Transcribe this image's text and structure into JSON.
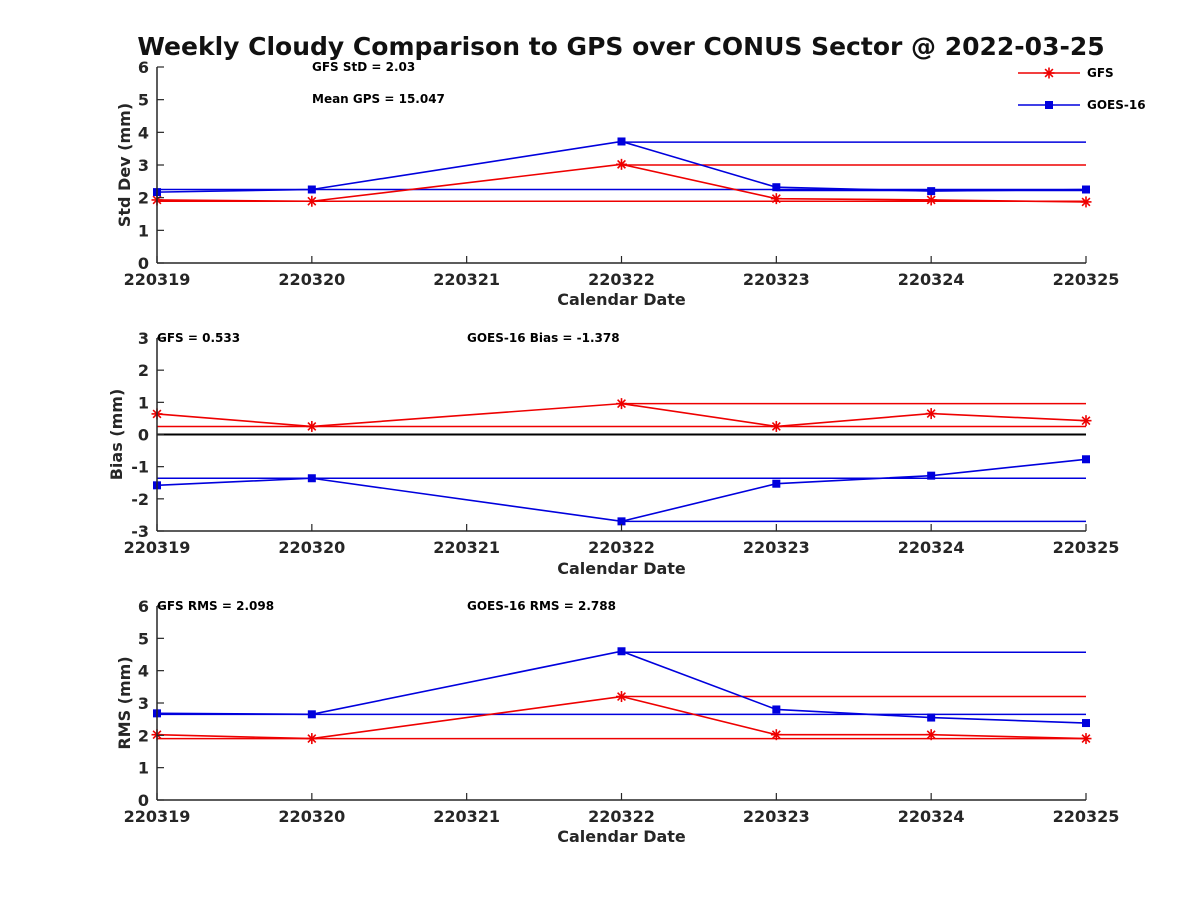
{
  "title": "Weekly Cloudy Comparison to GPS over CONUS Sector @ 2022-03-25",
  "legend": {
    "placement": "top-right",
    "entries": [
      {
        "label": "GFS",
        "color": "#ee0000",
        "marker": "asterisk"
      },
      {
        "label": "GOES-16",
        "color": "#0000dd",
        "marker": "square"
      }
    ]
  },
  "chart_data": [
    {
      "type": "line",
      "xlabel": "Calendar Date",
      "ylabel": "Std Dev (mm)",
      "ylim": [
        0,
        6
      ],
      "yticks": [
        "0",
        "1",
        "2",
        "3",
        "4",
        "5",
        "6"
      ],
      "categories": [
        "220319",
        "220320",
        "220321",
        "220322",
        "220323",
        "220324",
        "220325"
      ],
      "annotations": [
        "GFS StD = 2.03",
        "Mean GPS = 15.047"
      ],
      "series": [
        {
          "name": "GFS",
          "color": "#ee0000",
          "marker": "asterisk",
          "x": [
            0,
            1,
            3,
            4,
            5,
            6
          ],
          "values": [
            1.93,
            1.89,
            3.02,
            1.97,
            1.93,
            1.87
          ]
        },
        {
          "name": "GOES-16",
          "color": "#0000dd",
          "marker": "square",
          "x": [
            0,
            1,
            3,
            4,
            5,
            6
          ],
          "values": [
            2.17,
            2.25,
            3.72,
            2.32,
            2.2,
            2.25
          ]
        }
      ],
      "reference_lines": [
        {
          "series": "GFS",
          "from": 0,
          "to": 6,
          "value": 1.89
        },
        {
          "series": "GFS",
          "from": 3,
          "to": 6,
          "value": 3.0
        },
        {
          "series": "GOES-16",
          "from": 0,
          "to": 6,
          "value": 2.25
        },
        {
          "series": "GOES-16",
          "from": 3,
          "to": 6,
          "value": 3.7
        },
        {
          "series": "GOES-16",
          "from": 4,
          "to": 6,
          "value": 2.22
        }
      ]
    },
    {
      "type": "line",
      "xlabel": "Calendar Date",
      "ylabel": "Bias (mm)",
      "ylim": [
        -3,
        3
      ],
      "yticks": [
        "-3",
        "-2",
        "-1",
        "0",
        "1",
        "2",
        "3"
      ],
      "categories": [
        "220319",
        "220320",
        "220321",
        "220322",
        "220323",
        "220324",
        "220325"
      ],
      "annotations": [
        "GFS = 0.533",
        "GOES-16 Bias  = -1.378"
      ],
      "series": [
        {
          "name": "GFS",
          "color": "#ee0000",
          "marker": "asterisk",
          "x": [
            0,
            1,
            3,
            4,
            5,
            6
          ],
          "values": [
            0.64,
            0.25,
            0.96,
            0.25,
            0.65,
            0.43
          ]
        },
        {
          "name": "GOES-16",
          "color": "#0000dd",
          "marker": "square",
          "x": [
            0,
            1,
            3,
            4,
            5,
            6
          ],
          "values": [
            -1.58,
            -1.36,
            -2.7,
            -1.53,
            -1.28,
            -0.77
          ]
        }
      ],
      "reference_lines": [
        {
          "series": "zero",
          "from": 0,
          "to": 6,
          "value": 0,
          "color": "#000000"
        },
        {
          "series": "GFS",
          "from": 0,
          "to": 6,
          "value": 0.25
        },
        {
          "series": "GFS",
          "from": 3,
          "to": 6,
          "value": 0.96
        },
        {
          "series": "GOES-16",
          "from": 0,
          "to": 6,
          "value": -1.36
        },
        {
          "series": "GOES-16",
          "from": 3,
          "to": 6,
          "value": -2.7
        }
      ]
    },
    {
      "type": "line",
      "xlabel": "Calendar Date",
      "ylabel": "RMS (mm)",
      "ylim": [
        0,
        6
      ],
      "yticks": [
        "0",
        "1",
        "2",
        "3",
        "4",
        "5",
        "6"
      ],
      "categories": [
        "220319",
        "220320",
        "220321",
        "220322",
        "220323",
        "220324",
        "220325"
      ],
      "annotations": [
        "GFS RMS = 2.098",
        "GOES-16 RMS = 2.788"
      ],
      "series": [
        {
          "name": "GFS",
          "color": "#ee0000",
          "marker": "asterisk",
          "x": [
            0,
            1,
            3,
            4,
            5,
            6
          ],
          "values": [
            2.02,
            1.9,
            3.2,
            2.02,
            2.02,
            1.9
          ]
        },
        {
          "name": "GOES-16",
          "color": "#0000dd",
          "marker": "square",
          "x": [
            0,
            1,
            3,
            4,
            5,
            6
          ],
          "values": [
            2.68,
            2.65,
            4.6,
            2.8,
            2.55,
            2.38
          ]
        }
      ],
      "reference_lines": [
        {
          "series": "GFS",
          "from": 0,
          "to": 6,
          "value": 1.9
        },
        {
          "series": "GFS",
          "from": 3,
          "to": 6,
          "value": 3.2
        },
        {
          "series": "GOES-16",
          "from": 0,
          "to": 6,
          "value": 2.65
        },
        {
          "series": "GOES-16",
          "from": 3,
          "to": 6,
          "value": 4.57
        }
      ]
    }
  ]
}
